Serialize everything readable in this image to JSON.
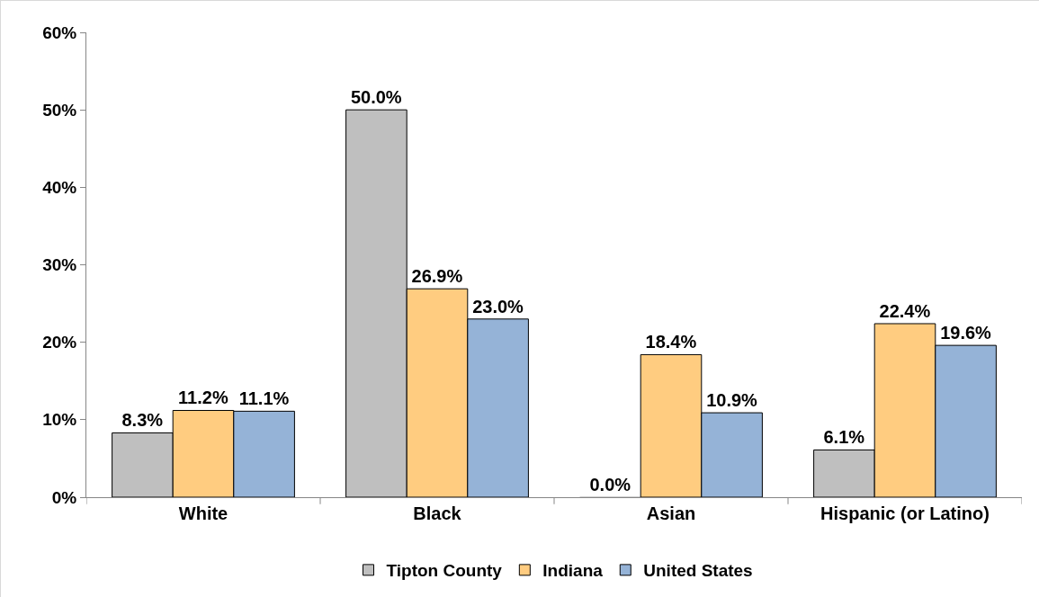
{
  "chart_data": {
    "type": "bar",
    "categories": [
      "White",
      "Black",
      "Asian",
      "Hispanic (or Latino)"
    ],
    "series": [
      {
        "name": "Tipton County",
        "color": "#bfbfbf",
        "values": [
          8.3,
          50.0,
          0.0,
          6.1
        ],
        "value_labels": [
          "8.3%",
          "50.0%",
          "0.0%",
          "6.1%"
        ]
      },
      {
        "name": "Indiana",
        "color": "#ffcc80",
        "values": [
          11.2,
          26.9,
          18.4,
          22.4
        ],
        "value_labels": [
          "11.2%",
          "26.9%",
          "18.4%",
          "22.4%"
        ]
      },
      {
        "name": "United States",
        "color": "#95b3d7",
        "values": [
          11.1,
          23.0,
          10.9,
          19.6
        ],
        "value_labels": [
          "11.1%",
          "23.0%",
          "10.9%",
          "19.6%"
        ]
      }
    ],
    "ylim": [
      0,
      60
    ],
    "yticks": [
      {
        "value": 0,
        "label": "0%"
      },
      {
        "value": 10,
        "label": "10%"
      },
      {
        "value": 20,
        "label": "20%"
      },
      {
        "value": 30,
        "label": "30%"
      },
      {
        "value": 40,
        "label": "40%"
      },
      {
        "value": 50,
        "label": "50%"
      },
      {
        "value": 60,
        "label": "60%"
      }
    ],
    "grid": false,
    "legend": "bottom"
  }
}
